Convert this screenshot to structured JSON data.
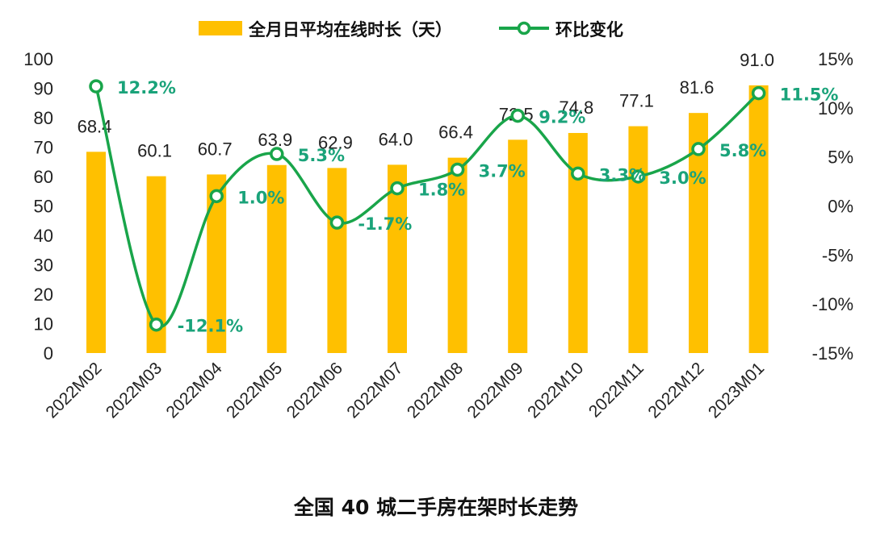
{
  "chart_data": {
    "type": "bar",
    "title": "全国 40 城二手房在架时长走势",
    "categories": [
      "2022M02",
      "2022M03",
      "2022M04",
      "2022M05",
      "2022M06",
      "2022M07",
      "2022M08",
      "2022M09",
      "2022M10",
      "2022M11",
      "2022M12",
      "2023M01"
    ],
    "series": [
      {
        "name": "全月日平均在线时长（天）",
        "type": "bar",
        "axis": "left",
        "color": "#ffc000",
        "values": [
          68.4,
          60.1,
          60.7,
          63.9,
          62.9,
          64.0,
          66.4,
          72.5,
          74.8,
          77.1,
          81.6,
          91.0
        ],
        "labels": [
          "68.4",
          "60.1",
          "60.7",
          "63.9",
          "62.9",
          "64.0",
          "66.4",
          "72.5",
          "74.8",
          "77.1",
          "81.6",
          "91.0"
        ]
      },
      {
        "name": "环比变化",
        "type": "line",
        "axis": "right",
        "color": "#19a54a",
        "values": [
          12.2,
          -12.1,
          1.0,
          5.3,
          -1.7,
          1.8,
          3.7,
          9.2,
          3.3,
          3.0,
          5.8,
          11.5
        ],
        "labels": [
          "12.2%",
          "-12.1%",
          "1.0%",
          "5.3%",
          "-1.7%",
          "1.8%",
          "3.7%",
          "9.2%",
          "3.3%",
          "3.0%",
          "5.8%",
          "11.5%"
        ]
      }
    ],
    "y_left": {
      "range": [
        0,
        100
      ],
      "ticks": [
        "0",
        "10",
        "20",
        "30",
        "40",
        "50",
        "60",
        "70",
        "80",
        "90",
        "100"
      ]
    },
    "y_right": {
      "range": [
        -15,
        15
      ],
      "ticks": [
        "-15%",
        "-10%",
        "-5%",
        "0%",
        "5%",
        "10%",
        "15%"
      ]
    },
    "grid": false,
    "legend_position": "top-center"
  }
}
